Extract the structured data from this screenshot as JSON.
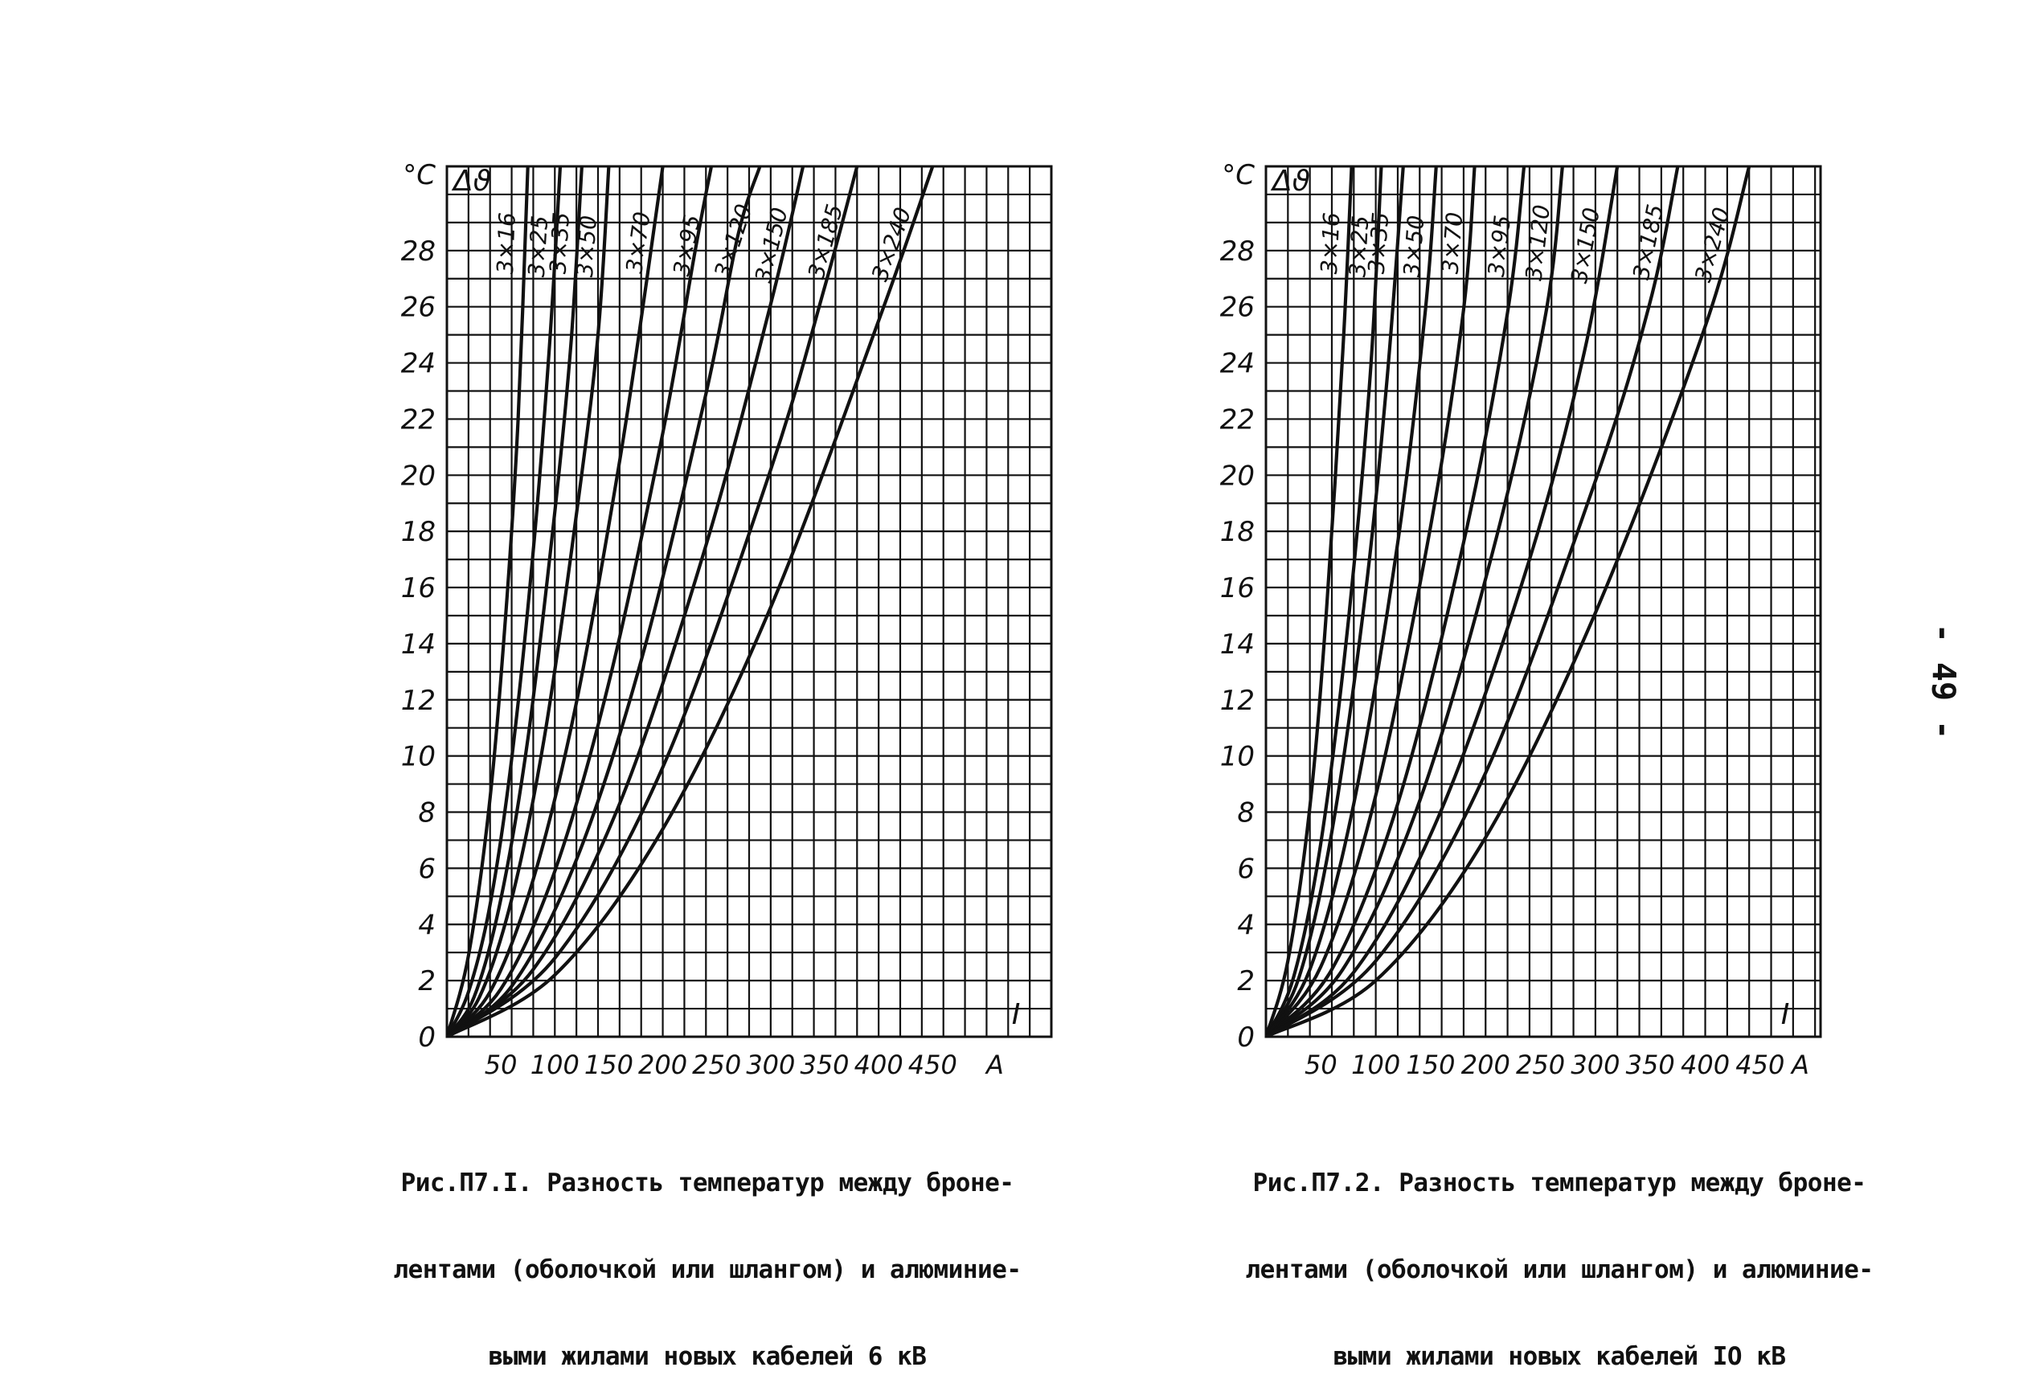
{
  "page_number": "- 49 -",
  "chart_data": [
    {
      "type": "line",
      "caption_lines": [
        "Рис.П7.I. Разность температур между броне-",
        "лентами (оболочкой или шлангом) и алюминие-",
        "выми жилами новых кабелей 6 кВ"
      ],
      "y_unit": "°C",
      "y_var": "Δϑ",
      "x_var": "I",
      "x_unit": "А",
      "xlim": [
        0,
        560
      ],
      "ylim": [
        0,
        31
      ],
      "x_ticks": [
        "50",
        "100",
        "150",
        "200",
        "250",
        "300",
        "350",
        "400",
        "450"
      ],
      "x_tick_values": [
        50,
        100,
        150,
        200,
        250,
        300,
        350,
        400,
        450
      ],
      "y_ticks": [
        "0",
        "2",
        "4",
        "6",
        "8",
        "10",
        "12",
        "14",
        "16",
        "18",
        "20",
        "22",
        "24",
        "26",
        "28"
      ],
      "y_tick_values": [
        0,
        2,
        4,
        6,
        8,
        10,
        12,
        14,
        16,
        18,
        20,
        22,
        24,
        26,
        28
      ],
      "grid": true,
      "series": [
        {
          "name": "3×16",
          "points": [
            [
              0,
              0
            ],
            [
              20,
              2.9
            ],
            [
              40,
              8.5
            ],
            [
              55,
              15.3
            ],
            [
              66,
              22
            ],
            [
              75,
              31
            ]
          ]
        },
        {
          "name": "3×25",
          "points": [
            [
              0,
              0
            ],
            [
              20,
              1.6
            ],
            [
              40,
              4.7
            ],
            [
              60,
              9.9
            ],
            [
              80,
              17.3
            ],
            [
              95,
              24.6
            ],
            [
              105,
              31
            ]
          ]
        },
        {
          "name": "3×35",
          "points": [
            [
              0,
              0
            ],
            [
              25,
              1.4
            ],
            [
              50,
              4.9
            ],
            [
              75,
              10.6
            ],
            [
              100,
              18.7
            ],
            [
              115,
              24.7
            ],
            [
              125,
              31
            ]
          ]
        },
        {
          "name": "3×50",
          "points": [
            [
              0,
              0
            ],
            [
              30,
              1.4
            ],
            [
              60,
              4.9
            ],
            [
              90,
              10.6
            ],
            [
              120,
              18.6
            ],
            [
              140,
              25
            ],
            [
              150,
              31
            ]
          ]
        },
        {
          "name": "3×70",
          "points": [
            [
              0,
              0
            ],
            [
              40,
              1.6
            ],
            [
              80,
              5.6
            ],
            [
              120,
              11.9
            ],
            [
              160,
              20.5
            ],
            [
              185,
              26.9
            ],
            [
              200,
              31
            ]
          ]
        },
        {
          "name": "3×95",
          "points": [
            [
              0,
              0
            ],
            [
              50,
              1.7
            ],
            [
              100,
              5.9
            ],
            [
              150,
              12.6
            ],
            [
              200,
              21.5
            ],
            [
              230,
              28
            ],
            [
              245,
              31
            ]
          ]
        },
        {
          "name": "3×120",
          "points": [
            [
              0,
              0
            ],
            [
              60,
              1.8
            ],
            [
              120,
              6.3
            ],
            [
              180,
              13.4
            ],
            [
              240,
              22.9
            ],
            [
              270,
              28.6
            ],
            [
              290,
              31
            ]
          ]
        },
        {
          "name": "3×150",
          "points": [
            [
              0,
              0
            ],
            [
              80,
              2.4
            ],
            [
              160,
              8.3
            ],
            [
              240,
              17.5
            ],
            [
              300,
              26.1
            ],
            [
              330,
              31
            ]
          ]
        },
        {
          "name": "3×185",
          "points": [
            [
              0,
              0
            ],
            [
              100,
              2.8
            ],
            [
              200,
              9.6
            ],
            [
              300,
              20.2
            ],
            [
              350,
              26.7
            ],
            [
              380,
              31
            ]
          ]
        },
        {
          "name": "3×240",
          "points": [
            [
              0,
              0
            ],
            [
              100,
              2.2
            ],
            [
              200,
              7.4
            ],
            [
              300,
              15.3
            ],
            [
              400,
              25.5
            ],
            [
              450,
              31
            ]
          ]
        }
      ]
    },
    {
      "type": "line",
      "caption_lines": [
        "Рис.П7.2. Разность температур между броне-",
        "лентами (оболочкой или шлангом) и алюминие-",
        "выми жилами новых кабелей IO кВ"
      ],
      "y_unit": "°C",
      "y_var": "Δϑ",
      "x_var": "I",
      "x_unit": "А",
      "xlim": [
        0,
        505
      ],
      "ylim": [
        0,
        31
      ],
      "x_ticks": [
        "50",
        "100",
        "150",
        "200",
        "250",
        "300",
        "350",
        "400",
        "450"
      ],
      "x_tick_values": [
        50,
        100,
        150,
        200,
        250,
        300,
        350,
        400,
        450
      ],
      "y_ticks": [
        "0",
        "2",
        "4",
        "6",
        "8",
        "10",
        "12",
        "14",
        "16",
        "18",
        "20",
        "22",
        "24",
        "26",
        "28"
      ],
      "y_tick_values": [
        0,
        2,
        4,
        6,
        8,
        10,
        12,
        14,
        16,
        18,
        20,
        22,
        24,
        26,
        28
      ],
      "grid": true,
      "series": [
        {
          "name": "3×16",
          "points": [
            [
              0,
              0
            ],
            [
              20,
              2.7
            ],
            [
              40,
              8.2
            ],
            [
              55,
              15.1
            ],
            [
              70,
              24.4
            ],
            [
              78,
              31
            ]
          ]
        },
        {
          "name": "3×25",
          "points": [
            [
              0,
              0
            ],
            [
              25,
              2.1
            ],
            [
              50,
              6.9
            ],
            [
              75,
              14.8
            ],
            [
              95,
              23.6
            ],
            [
              105,
              31
            ]
          ]
        },
        {
          "name": "3×35",
          "points": [
            [
              0,
              0
            ],
            [
              30,
              2.1
            ],
            [
              60,
              7.3
            ],
            [
              90,
              15.6
            ],
            [
              110,
              23.3
            ],
            [
              125,
              31
            ]
          ]
        },
        {
          "name": "3×50",
          "points": [
            [
              0,
              0
            ],
            [
              40,
              2.4
            ],
            [
              80,
              8.3
            ],
            [
              120,
              17.6
            ],
            [
              145,
              25.8
            ],
            [
              155,
              31
            ]
          ]
        },
        {
          "name": "3×70",
          "points": [
            [
              0,
              0
            ],
            [
              50,
              2.5
            ],
            [
              100,
              8.6
            ],
            [
              150,
              18.2
            ],
            [
              180,
              25.9
            ],
            [
              190,
              31
            ]
          ]
        },
        {
          "name": "3×95",
          "points": [
            [
              0,
              0
            ],
            [
              60,
              2.4
            ],
            [
              120,
              8.3
            ],
            [
              180,
              17.6
            ],
            [
              220,
              25.8
            ],
            [
              235,
              31
            ]
          ]
        },
        {
          "name": "3×120",
          "points": [
            [
              0,
              0
            ],
            [
              70,
              2.4
            ],
            [
              140,
              8.4
            ],
            [
              210,
              17.8
            ],
            [
              255,
              25.8
            ],
            [
              270,
              31
            ]
          ]
        },
        {
          "name": "3×150",
          "points": [
            [
              0,
              0
            ],
            [
              80,
              2.3
            ],
            [
              160,
              8.1
            ],
            [
              240,
              17
            ],
            [
              290,
              24.4
            ],
            [
              320,
              31
            ]
          ]
        },
        {
          "name": "3×185",
          "points": [
            [
              0,
              0
            ],
            [
              100,
              2.7
            ],
            [
              200,
              9.4
            ],
            [
              300,
              19.8
            ],
            [
              350,
              26.2
            ],
            [
              375,
              31
            ]
          ]
        },
        {
          "name": "3×240",
          "points": [
            [
              0,
              0
            ],
            [
              100,
              2
            ],
            [
              200,
              7.1
            ],
            [
              300,
              15.1
            ],
            [
              400,
              25.3
            ],
            [
              440,
              31
            ]
          ]
        }
      ]
    }
  ]
}
